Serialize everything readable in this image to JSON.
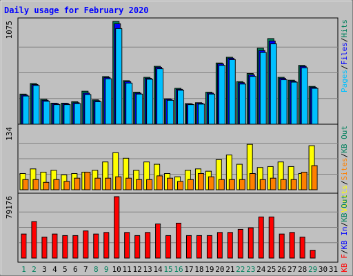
{
  "chart_data": {
    "type": "bar",
    "title": "Daily usage for February 2020",
    "days": [
      "1",
      "2",
      "3",
      "4",
      "5",
      "6",
      "7",
      "8",
      "9",
      "10",
      "11",
      "12",
      "13",
      "14",
      "15",
      "16",
      "17",
      "18",
      "19",
      "20",
      "21",
      "22",
      "23",
      "24",
      "25",
      "26",
      "27",
      "28",
      "29",
      "30",
      "31"
    ],
    "weekend_days": [
      1,
      2,
      8,
      9,
      15,
      16,
      22,
      23,
      29
    ],
    "colors": {
      "background": "#c0c0c0",
      "title": "#0000ff",
      "hits": "#00805c",
      "files": "#0000ff",
      "pages": "#00c0ff",
      "visits": "#ffff00",
      "sites": "#ff8000",
      "kb_f": "#ff0000",
      "kb_in": "#0000ff",
      "kb_out": "#00805c",
      "weekend_label": "#00805c",
      "weekday_label": "#000000"
    },
    "panels": [
      {
        "id": "top",
        "ymax_label": "1075",
        "ymax": 1075,
        "legend": [
          {
            "text": "Pages",
            "color": "#00c0ff"
          },
          {
            "text": "/",
            "color": "#000000"
          },
          {
            "text": "Files",
            "color": "#0000ff"
          },
          {
            "text": "/",
            "color": "#000000"
          },
          {
            "text": "Hits",
            "color": "#00805c"
          }
        ],
        "series": [
          {
            "name": "Hits",
            "color": "#00805c",
            "values": [
              315,
              425,
              260,
              220,
              220,
              235,
              345,
              255,
              498,
              1075,
              455,
              335,
              490,
              605,
              265,
              375,
              215,
              225,
              335,
              640,
              700,
              445,
              530,
              795,
              895,
              490,
              460,
              615,
              395,
              0,
              0
            ]
          },
          {
            "name": "Files",
            "color": "#0000ff",
            "values": [
              305,
              415,
              250,
              215,
              215,
              225,
              325,
              245,
              488,
              1050,
              445,
              325,
              480,
              595,
              260,
              365,
              210,
              220,
              325,
              630,
              690,
              435,
              515,
              770,
              870,
              480,
              450,
              605,
              385,
              0,
              0
            ]
          },
          {
            "name": "Pages",
            "color": "#00c0ff",
            "values": [
              295,
              405,
              240,
              205,
              205,
              215,
              310,
              235,
              475,
              1000,
              430,
              315,
              470,
              580,
              250,
              355,
              205,
              210,
              315,
              615,
              675,
              420,
              500,
              750,
              840,
              465,
              440,
              590,
              375,
              0,
              0
            ]
          }
        ]
      },
      {
        "id": "middle",
        "ymax_label": "134",
        "ymax": 134,
        "legend": [
          {
            "text": "Visits",
            "color": "#ffff00"
          },
          {
            "text": "/",
            "color": "#000000"
          },
          {
            "text": "Sites",
            "color": "#ff8000"
          },
          {
            "text": "/",
            "color": "#000000"
          },
          {
            "text": "KB Out",
            "color": "#00805c"
          }
        ],
        "series": [
          {
            "name": "Visits",
            "color": "#ffff00",
            "values": [
              35,
              45,
              38,
              42,
              32,
              35,
              38,
              42,
              60,
              80,
              68,
              42,
              60,
              55,
              35,
              28,
              42,
              45,
              40,
              65,
              75,
              55,
              98,
              48,
              50,
              60,
              50,
              35,
              95,
              0,
              0
            ]
          },
          {
            "name": "Sites",
            "color": "#ff8000",
            "values": [
              22,
              22,
              16,
              22,
              18,
              25,
              38,
              25,
              25,
              28,
              25,
              22,
              22,
              30,
              25,
              18,
              22,
              35,
              28,
              22,
              22,
              22,
              35,
              22,
              25,
              22,
              22,
              38,
              52,
              0,
              0
            ]
          }
        ]
      },
      {
        "id": "bottom",
        "ymax_label": "79176",
        "ymax": 79176,
        "legend": [
          {
            "text": "KB F",
            "color": "#ff0000"
          },
          {
            "text": "/",
            "color": "#000000"
          },
          {
            "text": "KB In",
            "color": "#0000ff"
          },
          {
            "text": "/",
            "color": "#000000"
          },
          {
            "text": "KB Out",
            "color": "#00805c"
          }
        ],
        "series": [
          {
            "name": "KB F",
            "color": "#ff0000",
            "values": [
              31000,
              47000,
              27000,
              31000,
              29000,
              29000,
              35000,
              31000,
              33000,
              79176,
              33000,
              29000,
              33000,
              44000,
              29000,
              45000,
              29000,
              29000,
              29000,
              33000,
              33000,
              37000,
              39000,
              53000,
              53000,
              31000,
              33000,
              27000,
              10000,
              0,
              0
            ]
          }
        ]
      }
    ]
  }
}
